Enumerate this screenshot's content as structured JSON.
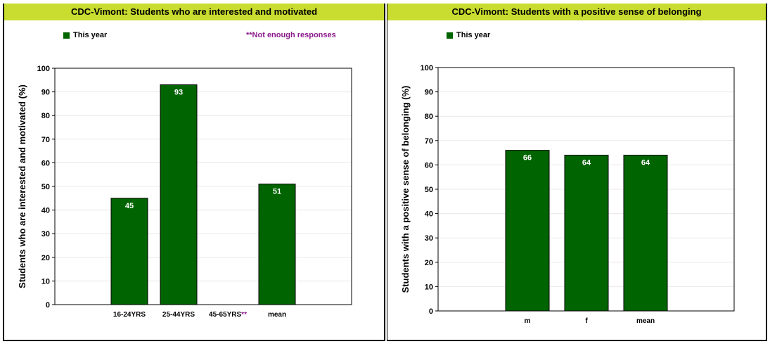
{
  "charts": [
    {
      "title": "CDC-Vimont: Students who are interested and motivated",
      "legend": "This year",
      "note": "**Not enough responses",
      "chart_data": {
        "type": "bar",
        "categories": [
          "16-24YRS",
          "25-44YRS",
          "45-65YRS",
          "mean"
        ],
        "category_marks": [
          "",
          "",
          "**",
          ""
        ],
        "series": [
          {
            "name": "This year",
            "values": [
              45,
              93,
              null,
              51
            ]
          }
        ],
        "ylabel": "Students who are interested and motivated (%)",
        "ylim": [
          0,
          100
        ],
        "yticks": [
          0,
          10,
          20,
          30,
          40,
          50,
          60,
          70,
          80,
          90,
          100
        ],
        "grid": true,
        "legend_position": "top-left"
      }
    },
    {
      "title": "CDC-Vimont: Students with a positive sense of belonging",
      "legend": "This year",
      "chart_data": {
        "type": "bar",
        "categories": [
          "m",
          "f",
          "mean"
        ],
        "category_marks": [
          "",
          "",
          ""
        ],
        "series": [
          {
            "name": "This year",
            "values": [
              66,
              64,
              64
            ]
          }
        ],
        "ylabel": "Students with a positive sense of belonging (%)",
        "ylim": [
          0,
          100
        ],
        "yticks": [
          0,
          10,
          20,
          30,
          40,
          50,
          60,
          70,
          80,
          90,
          100
        ],
        "grid": true,
        "legend_position": "top-left"
      }
    }
  ],
  "colors": {
    "bar": "#006400",
    "title_bar": "#c8dd2f",
    "note": "#8b1a8b",
    "grid": "#e8e8e8"
  }
}
